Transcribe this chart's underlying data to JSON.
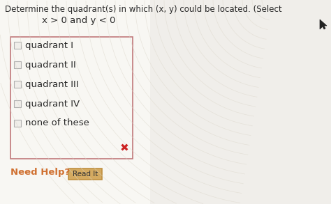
{
  "title": "Determine the quadrant(s) in which (x, y) could be located. (Select",
  "condition": "x > 0 and y < 0",
  "options": [
    "quadrant I",
    "quadrant II",
    "quadrant III",
    "quadrant IV",
    "none of these"
  ],
  "bg_color": "#f0eeea",
  "bg_color_left": "#f5f4f0",
  "box_border_color": "#c0787a",
  "checkbox_border": "#b0b0b0",
  "checkbox_fill": "#f0eeea",
  "text_color": "#2a2a2a",
  "need_help_color": "#d07030",
  "read_it_bg": "#d4aa60",
  "read_it_border": "#c09040",
  "read_it_text": "#333333",
  "x_color": "#cc2222",
  "cursor_color": "#222222",
  "title_fontsize": 8.5,
  "option_fontsize": 9.5,
  "condition_fontsize": 9.5,
  "need_help_fontsize": 9.5,
  "read_it_fontsize": 7.5
}
